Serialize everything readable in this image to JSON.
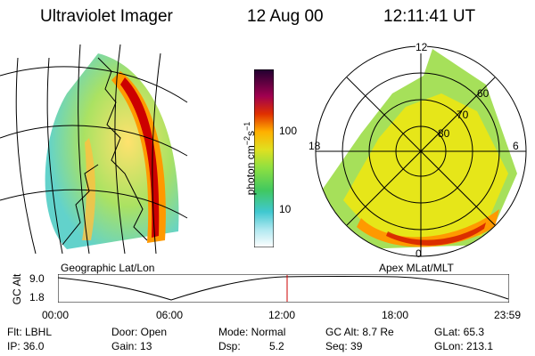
{
  "header": {
    "title": "Ultraviolet Imager",
    "date": "12 Aug 00",
    "time": "12:11:41 UT"
  },
  "geo_panel": {
    "caption": "Geographic Lat/Lon"
  },
  "polar_panel": {
    "caption": "Apex MLat/MLT",
    "mlt_labels": {
      "top": "12",
      "right": "6",
      "bottom": "0",
      "left": "18"
    },
    "lat_labels": [
      "60",
      "70",
      "80"
    ]
  },
  "colorbar": {
    "unit_label": "photon cm",
    "unit_exp1": "−2",
    "unit_mid": "s",
    "unit_exp2": "−1",
    "ticks": [
      "100",
      "10"
    ]
  },
  "altitude_plot": {
    "ylabel": "GC Alt",
    "y_ticks": [
      "9.0",
      "1.8"
    ],
    "x_ticks": [
      "00:00",
      "06:00",
      "12:00",
      "18:00",
      "23:59"
    ],
    "marker_hour": 12.19
  },
  "info": {
    "filter": "Flt: LBHL",
    "ip": "IP: 36.0",
    "door": "Door: Open",
    "gain": "Gain: 13",
    "mode": "Mode: Normal",
    "dsp_label": "Dsp:",
    "dsp_value": "5.2",
    "gc_alt": "GC Alt: 8.7 Re",
    "seq": "Seq: 39",
    "glat": "GLat: 65.3",
    "glon": "GLon: 213.1"
  },
  "colors": {
    "marker": "#cc0000",
    "aurora_low": "#7fd67f",
    "aurora_mid": "#e6e619",
    "aurora_high": "#ff9900",
    "aurora_peak": "#cc0000"
  }
}
